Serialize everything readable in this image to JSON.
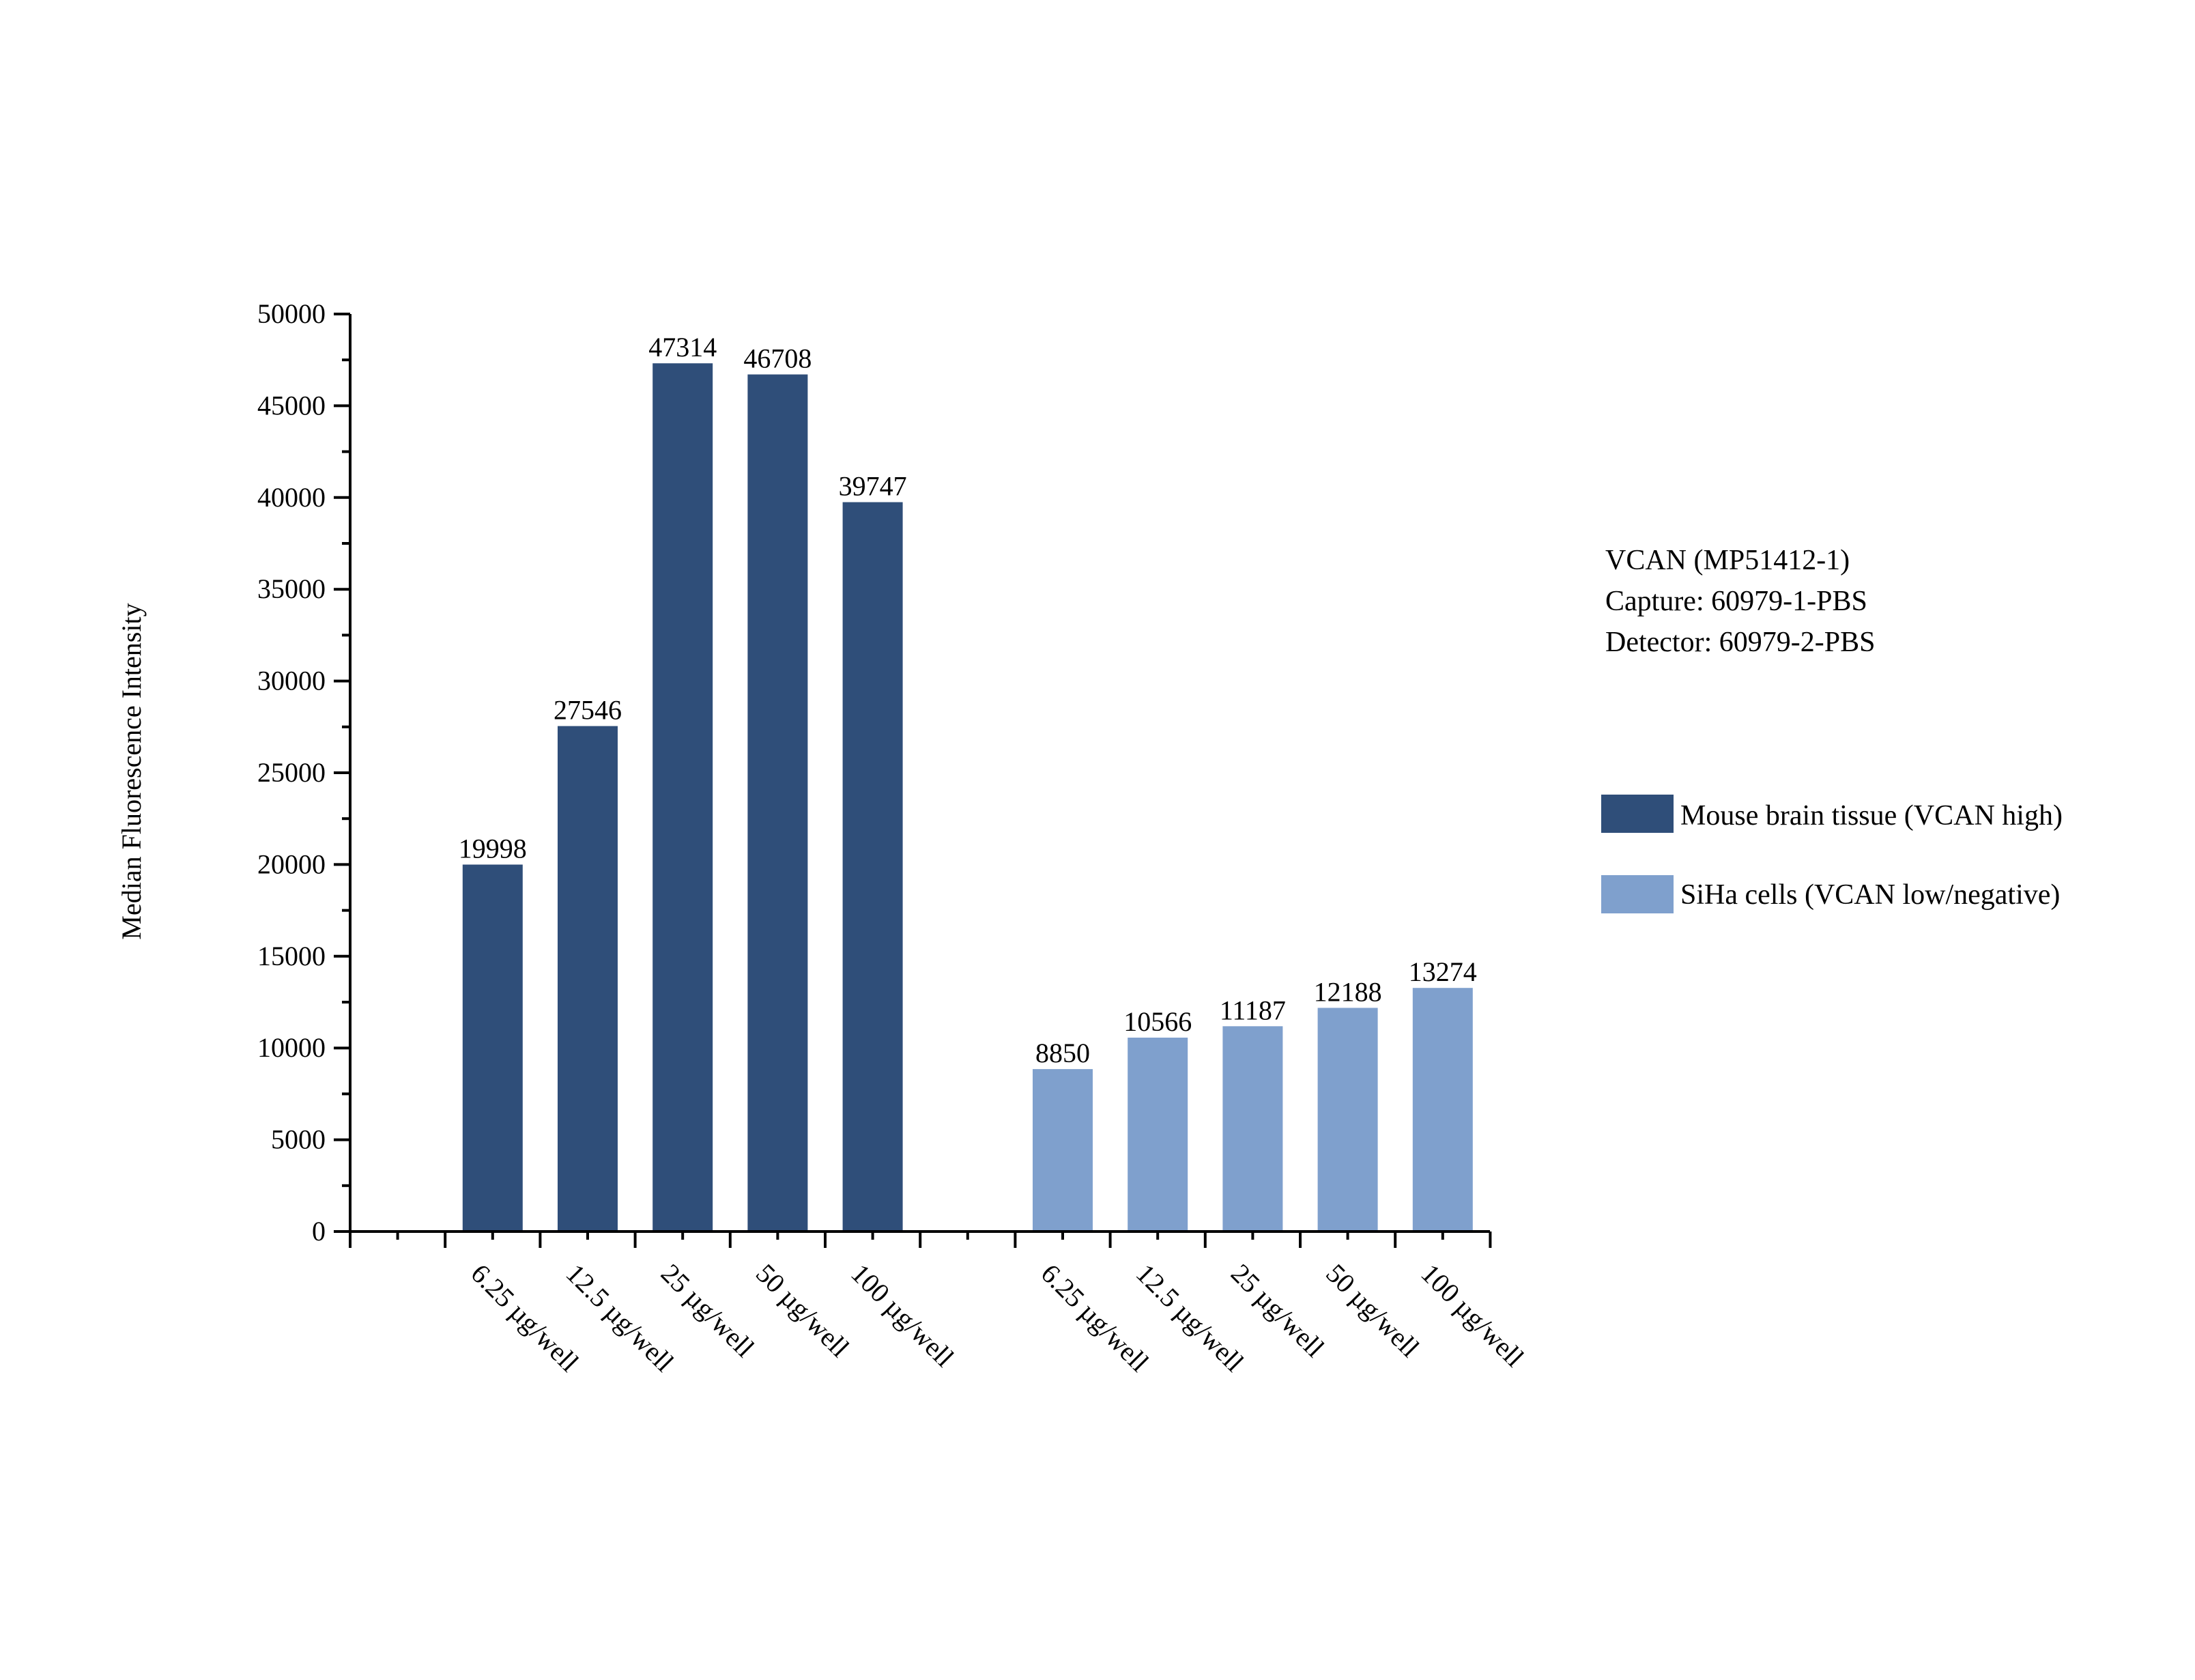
{
  "chart_data": {
    "type": "bar",
    "ylabel": "Median Fluorescence Intensity",
    "xlabel": "",
    "ylim": [
      0,
      50000
    ],
    "yticks": [
      0,
      5000,
      10000,
      15000,
      20000,
      25000,
      30000,
      35000,
      40000,
      45000,
      50000
    ],
    "grid": false,
    "legend_position": "right",
    "categories": [
      "6.25 µg/well",
      "12.5 µg/well",
      "25 µg/well",
      "50 µg/well",
      "100 µg/well"
    ],
    "series": [
      {
        "name": "Mouse brain tissue (VCAN high)",
        "color": "#2f4e79",
        "values": [
          19998,
          27546,
          47314,
          46708,
          39747
        ]
      },
      {
        "name": "SiHa cells (VCAN low/negative)",
        "color": "#7fa0cd",
        "values": [
          8850,
          10566,
          11187,
          12188,
          13274
        ]
      }
    ],
    "annotation": [
      "VCAN (MP51412-1)",
      "Capture: 60979-1-PBS",
      "Detector: 60979-2-PBS"
    ]
  }
}
